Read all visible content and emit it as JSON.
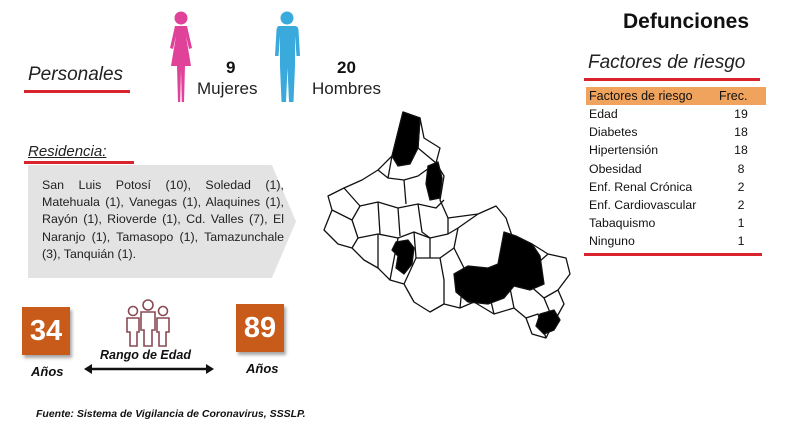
{
  "header": {
    "title": "Defunciones"
  },
  "personales": {
    "label": "Personales",
    "mujeres": {
      "count": "9",
      "label": "Mujeres"
    },
    "hombres": {
      "count": "20",
      "label": "Hombres"
    }
  },
  "residencia": {
    "label": "Residencia:",
    "text": "San Luis Potosí (10), Soledad (1), Matehuala (1), Vanegas (1), Alaquines (1), Rayón (1), Rioverde (1), Cd. Valles (7), El Naranjo (1), Tamasopo (1), Tamazunchale (3), Tanquián (1)."
  },
  "edad": {
    "min": "34",
    "max": "89",
    "unit": "Años",
    "range_label": "Rango de Edad"
  },
  "factores": {
    "title": "Factores de riesgo",
    "columns": [
      "Factores de riesgo",
      "Frec."
    ],
    "rows": [
      {
        "factor": "Edad",
        "freq": "19"
      },
      {
        "factor": "Diabetes",
        "freq": "18"
      },
      {
        "factor": "Hipertensión",
        "freq": "18"
      },
      {
        "factor": "Obesidad",
        "freq": "8"
      },
      {
        "factor": "Enf. Renal Crónica",
        "freq": "2"
      },
      {
        "factor": "Enf. Cardiovascular",
        "freq": "2"
      },
      {
        "factor": "Tabaquismo",
        "freq": "1"
      },
      {
        "factor": "Ninguno",
        "freq": "1"
      }
    ]
  },
  "source": "Fuente: Sistema de Vigilancia de Coronavirus, SSSLP.",
  "icons": {
    "female": "female-figure-icon",
    "male": "male-figure-icon",
    "group": "people-group-icon",
    "map": "municipality-map"
  },
  "colors": {
    "female": "#e0429a",
    "male": "#3aa9dc",
    "accent_red": "#d9232d",
    "age_box": "#c85a1a",
    "table_header": "#f0a35c"
  }
}
